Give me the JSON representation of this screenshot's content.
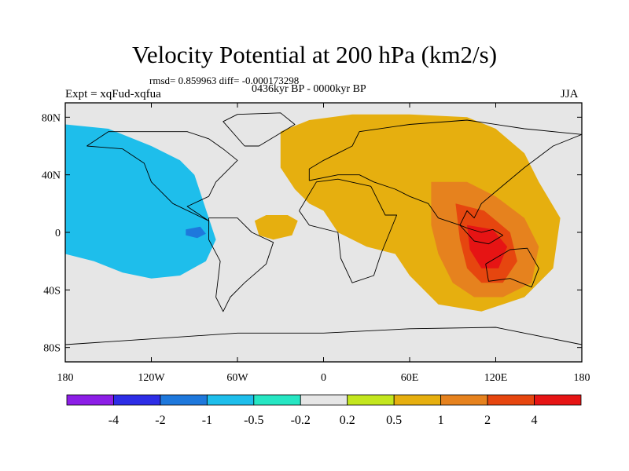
{
  "header": {
    "title": "Velocity Potential at 200 hPa (km2/s)",
    "stats": "rmsd= 0.859963 diff= -0.000173298",
    "left_string": "Expt = xqFud-xqfua",
    "center_string": "0436kyr BP - 0000kyr BP",
    "right_string": "JJA"
  },
  "map": {
    "projection": "cylindrical-equidistant",
    "lon_range": [
      -180,
      180
    ],
    "lat_range": [
      -90,
      90
    ],
    "x_ticks": [
      {
        "lon": -180,
        "label": "180"
      },
      {
        "lon": -120,
        "label": "120W"
      },
      {
        "lon": -60,
        "label": "60W"
      },
      {
        "lon": 0,
        "label": "0"
      },
      {
        "lon": 60,
        "label": "60E"
      },
      {
        "lon": 120,
        "label": "120E"
      },
      {
        "lon": 180,
        "label": "180"
      }
    ],
    "y_ticks": [
      {
        "lat": 80,
        "label": "80N"
      },
      {
        "lat": 40,
        "label": "40N"
      },
      {
        "lat": 0,
        "label": "0"
      },
      {
        "lat": -40,
        "label": "40S"
      },
      {
        "lat": -80,
        "label": "80S"
      }
    ],
    "contour_regions": [
      {
        "level": -1,
        "name": "pacific-negative-core-region",
        "points": [
          [
            -180,
            75
          ],
          [
            -150,
            72
          ],
          [
            -120,
            60
          ],
          [
            -100,
            50
          ],
          [
            -90,
            40
          ],
          [
            -85,
            25
          ],
          [
            -80,
            10
          ],
          [
            -75,
            -5
          ],
          [
            -82,
            -20
          ],
          [
            -100,
            -30
          ],
          [
            -120,
            -32
          ],
          [
            -140,
            -28
          ],
          [
            -160,
            -20
          ],
          [
            -180,
            -15
          ]
        ]
      },
      {
        "level": -2,
        "name": "eastern-pacific-minimum",
        "points": [
          [
            -96,
            2
          ],
          [
            -86,
            4
          ],
          [
            -82,
            -1
          ],
          [
            -88,
            -4
          ],
          [
            -96,
            -2
          ]
        ]
      },
      {
        "level": 0.5,
        "name": "africa-eurasia-positive-region",
        "points": [
          [
            -30,
            70
          ],
          [
            -10,
            78
          ],
          [
            20,
            82
          ],
          [
            60,
            82
          ],
          [
            100,
            80
          ],
          [
            120,
            72
          ],
          [
            140,
            55
          ],
          [
            150,
            35
          ],
          [
            165,
            10
          ],
          [
            160,
            -25
          ],
          [
            140,
            -45
          ],
          [
            110,
            -55
          ],
          [
            80,
            -50
          ],
          [
            60,
            -30
          ],
          [
            50,
            -15
          ],
          [
            30,
            -10
          ],
          [
            10,
            0
          ],
          [
            0,
            15
          ],
          [
            -10,
            20
          ],
          [
            -20,
            30
          ],
          [
            -30,
            45
          ]
        ]
      },
      {
        "level": 0.5,
        "name": "west-atlantic-positive-lobe",
        "points": [
          [
            -48,
            8
          ],
          [
            -40,
            12
          ],
          [
            -25,
            12
          ],
          [
            -18,
            8
          ],
          [
            -22,
            -2
          ],
          [
            -35,
            -5
          ],
          [
            -45,
            -2
          ]
        ]
      },
      {
        "level": 1,
        "name": "indo-pacific-positive-region",
        "points": [
          [
            75,
            35
          ],
          [
            100,
            35
          ],
          [
            120,
            25
          ],
          [
            140,
            10
          ],
          [
            150,
            -10
          ],
          [
            145,
            -35
          ],
          [
            125,
            -45
          ],
          [
            105,
            -45
          ],
          [
            90,
            -35
          ],
          [
            80,
            -15
          ],
          [
            75,
            5
          ]
        ]
      },
      {
        "level": 2,
        "name": "indo-pacific-maximum",
        "points": [
          [
            92,
            20
          ],
          [
            112,
            15
          ],
          [
            130,
            0
          ],
          [
            135,
            -20
          ],
          [
            125,
            -35
          ],
          [
            110,
            -35
          ],
          [
            100,
            -25
          ],
          [
            95,
            -5
          ]
        ]
      },
      {
        "level": 4,
        "name": "maritime-continent-peak",
        "points": [
          [
            100,
            5
          ],
          [
            118,
            2
          ],
          [
            128,
            -10
          ],
          [
            122,
            -25
          ],
          [
            110,
            -25
          ],
          [
            102,
            -12
          ]
        ]
      }
    ],
    "coastlines": [
      {
        "name": "north-america-coast",
        "points": [
          [
            -165,
            60
          ],
          [
            -150,
            70
          ],
          [
            -120,
            70
          ],
          [
            -95,
            70
          ],
          [
            -80,
            65
          ],
          [
            -70,
            58
          ],
          [
            -60,
            50
          ],
          [
            -75,
            35
          ],
          [
            -80,
            25
          ],
          [
            -95,
            18
          ],
          [
            -80,
            8
          ],
          [
            -105,
            20
          ],
          [
            -120,
            35
          ],
          [
            -125,
            48
          ],
          [
            -140,
            58
          ],
          [
            -165,
            60
          ]
        ]
      },
      {
        "name": "greenland-coast",
        "points": [
          [
            -55,
            60
          ],
          [
            -45,
            60
          ],
          [
            -20,
            75
          ],
          [
            -30,
            83
          ],
          [
            -60,
            82
          ],
          [
            -70,
            77
          ],
          [
            -55,
            60
          ]
        ]
      },
      {
        "name": "south-america-coast",
        "points": [
          [
            -80,
            10
          ],
          [
            -60,
            10
          ],
          [
            -50,
            0
          ],
          [
            -35,
            -7
          ],
          [
            -40,
            -22
          ],
          [
            -55,
            -35
          ],
          [
            -65,
            -45
          ],
          [
            -70,
            -55
          ],
          [
            -75,
            -45
          ],
          [
            -72,
            -20
          ],
          [
            -80,
            -5
          ],
          [
            -80,
            10
          ]
        ]
      },
      {
        "name": "africa-coast",
        "points": [
          [
            -17,
            15
          ],
          [
            -5,
            35
          ],
          [
            10,
            37
          ],
          [
            33,
            32
          ],
          [
            43,
            12
          ],
          [
            51,
            12
          ],
          [
            40,
            -15
          ],
          [
            35,
            -30
          ],
          [
            20,
            -35
          ],
          [
            12,
            -18
          ],
          [
            10,
            0
          ],
          [
            -10,
            5
          ],
          [
            -17,
            15
          ]
        ]
      },
      {
        "name": "eurasia-coast",
        "points": [
          [
            -10,
            36
          ],
          [
            -10,
            44
          ],
          [
            0,
            50
          ],
          [
            10,
            55
          ],
          [
            20,
            60
          ],
          [
            25,
            70
          ],
          [
            60,
            75
          ],
          [
            100,
            78
          ],
          [
            140,
            72
          ],
          [
            180,
            68
          ],
          [
            160,
            60
          ],
          [
            140,
            45
          ],
          [
            122,
            30
          ],
          [
            110,
            20
          ],
          [
            105,
            10
          ],
          [
            100,
            15
          ],
          [
            95,
            5
          ],
          [
            80,
            10
          ],
          [
            73,
            20
          ],
          [
            60,
            25
          ],
          [
            50,
            30
          ],
          [
            35,
            35
          ],
          [
            25,
            40
          ],
          [
            10,
            40
          ],
          [
            -10,
            36
          ]
        ]
      },
      {
        "name": "australia-coast",
        "points": [
          [
            113,
            -22
          ],
          [
            130,
            -12
          ],
          [
            142,
            -11
          ],
          [
            150,
            -25
          ],
          [
            145,
            -38
          ],
          [
            130,
            -32
          ],
          [
            115,
            -34
          ],
          [
            113,
            -22
          ]
        ]
      },
      {
        "name": "antarctica-coast",
        "points": [
          [
            -180,
            -78
          ],
          [
            -120,
            -74
          ],
          [
            -60,
            -70
          ],
          [
            0,
            -70
          ],
          [
            60,
            -67
          ],
          [
            120,
            -66
          ],
          [
            180,
            -78
          ]
        ]
      },
      {
        "name": "indonesia-coast",
        "points": [
          [
            95,
            5
          ],
          [
            105,
            -6
          ],
          [
            115,
            -8
          ],
          [
            120,
            -5
          ],
          [
            125,
            -2
          ],
          [
            118,
            2
          ],
          [
            110,
            0
          ],
          [
            100,
            3
          ],
          [
            95,
            5
          ]
        ]
      }
    ]
  },
  "colorbar": {
    "colors": [
      "#8c1ee6",
      "#2d2de6",
      "#1e78dc",
      "#1ebeeb",
      "#26e6c3",
      "#e6e6e6",
      "#c3e61e",
      "#e6af0f",
      "#e6821e",
      "#e6460f",
      "#e61414"
    ],
    "ticks": [
      "-4",
      "-2",
      "-1",
      "-0.5",
      "-0.2",
      "0.2",
      "0.5",
      "1",
      "2",
      "4"
    ]
  }
}
